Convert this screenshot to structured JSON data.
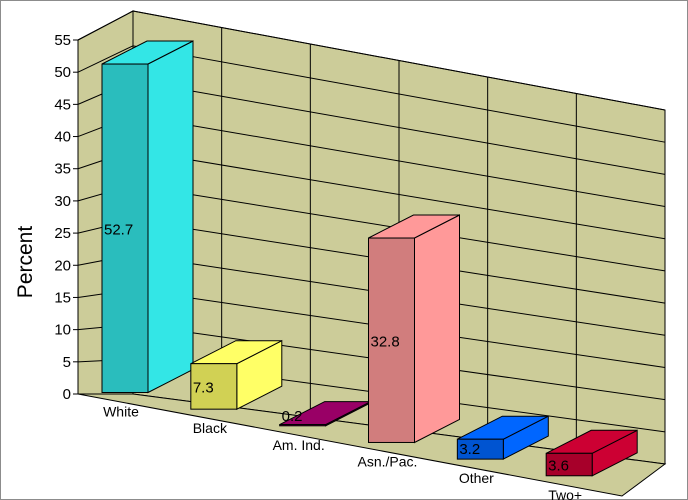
{
  "chart_data": {
    "type": "bar",
    "title": "",
    "xlabel": "",
    "ylabel": "Percent",
    "ylim": [
      0,
      55
    ],
    "yticks": [
      "0",
      "5",
      "10",
      "15",
      "20",
      "25",
      "30",
      "35",
      "40",
      "45",
      "50",
      "55"
    ],
    "grid": true,
    "categories": [
      "White",
      "Black",
      "Am. Ind.",
      "Asn./Pac.",
      "Other",
      "Two+"
    ],
    "values": [
      52.7,
      7.3,
      0.2,
      32.8,
      3.2,
      3.6
    ],
    "data_labels": [
      "52.7",
      "7.3",
      "0.2",
      "32.8",
      "3.2",
      "3.6"
    ],
    "colors": [
      "#33e6e6",
      "#ffff66",
      "#990066",
      "#ff9999",
      "#0066ff",
      "#cc0033"
    ],
    "wall_color": "#cccc99"
  }
}
